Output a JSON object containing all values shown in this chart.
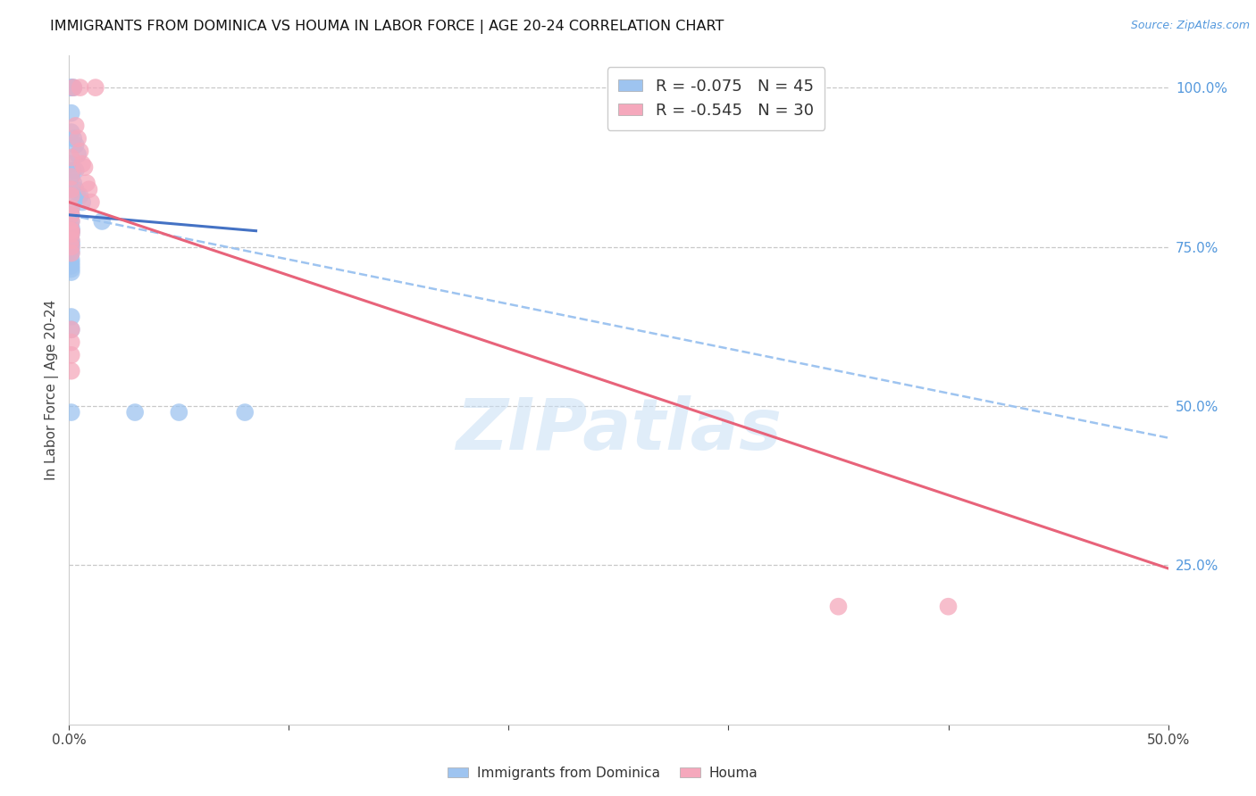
{
  "title": "IMMIGRANTS FROM DOMINICA VS HOUMA IN LABOR FORCE | AGE 20-24 CORRELATION CHART",
  "source": "Source: ZipAtlas.com",
  "ylabel": "In Labor Force | Age 20-24",
  "xlim": [
    0.0,
    0.5
  ],
  "ylim": [
    0.0,
    1.05
  ],
  "xticks": [
    0.0,
    0.1,
    0.2,
    0.3,
    0.4,
    0.5
  ],
  "xtick_labels": [
    "0.0%",
    "",
    "",
    "",
    "",
    "50.0%"
  ],
  "yticks_right": [
    0.25,
    0.5,
    0.75,
    1.0
  ],
  "ytick_labels_right": [
    "25.0%",
    "50.0%",
    "75.0%",
    "100.0%"
  ],
  "legend_blue_r": "-0.075",
  "legend_blue_n": "45",
  "legend_pink_r": "-0.545",
  "legend_pink_n": "30",
  "watermark": "ZIPatlas",
  "blue_color": "#9ec4f0",
  "pink_color": "#f5a8bc",
  "blue_line_color": "#4472c4",
  "pink_line_color": "#e8637a",
  "blue_scatter": [
    [
      0.001,
      1.0
    ],
    [
      0.001,
      1.0
    ],
    [
      0.002,
      1.0
    ],
    [
      0.001,
      0.96
    ],
    [
      0.001,
      0.93
    ],
    [
      0.002,
      0.92
    ],
    [
      0.003,
      0.91
    ],
    [
      0.004,
      0.895
    ],
    [
      0.001,
      0.88
    ],
    [
      0.002,
      0.87
    ],
    [
      0.003,
      0.87
    ],
    [
      0.001,
      0.86
    ],
    [
      0.002,
      0.85
    ],
    [
      0.001,
      0.84
    ],
    [
      0.003,
      0.84
    ],
    [
      0.004,
      0.83
    ],
    [
      0.005,
      0.83
    ],
    [
      0.006,
      0.82
    ],
    [
      0.001,
      0.81
    ],
    [
      0.001,
      0.8
    ],
    [
      0.001,
      0.79
    ],
    [
      0.001,
      0.78
    ],
    [
      0.001,
      0.775
    ],
    [
      0.001,
      0.775
    ],
    [
      0.001,
      0.775
    ],
    [
      0.001,
      0.775
    ],
    [
      0.001,
      0.77
    ],
    [
      0.001,
      0.76
    ],
    [
      0.001,
      0.755
    ],
    [
      0.001,
      0.755
    ],
    [
      0.001,
      0.75
    ],
    [
      0.001,
      0.745
    ],
    [
      0.001,
      0.74
    ],
    [
      0.001,
      0.73
    ],
    [
      0.001,
      0.725
    ],
    [
      0.001,
      0.72
    ],
    [
      0.001,
      0.715
    ],
    [
      0.001,
      0.71
    ],
    [
      0.015,
      0.79
    ],
    [
      0.001,
      0.64
    ],
    [
      0.001,
      0.62
    ],
    [
      0.001,
      0.49
    ],
    [
      0.03,
      0.49
    ],
    [
      0.05,
      0.49
    ],
    [
      0.08,
      0.49
    ]
  ],
  "pink_scatter": [
    [
      0.002,
      1.0
    ],
    [
      0.005,
      1.0
    ],
    [
      0.012,
      1.0
    ],
    [
      0.003,
      0.94
    ],
    [
      0.004,
      0.92
    ],
    [
      0.005,
      0.9
    ],
    [
      0.001,
      0.89
    ],
    [
      0.006,
      0.88
    ],
    [
      0.007,
      0.875
    ],
    [
      0.001,
      0.86
    ],
    [
      0.008,
      0.85
    ],
    [
      0.001,
      0.84
    ],
    [
      0.009,
      0.84
    ],
    [
      0.001,
      0.83
    ],
    [
      0.01,
      0.82
    ],
    [
      0.001,
      0.81
    ],
    [
      0.001,
      0.8
    ],
    [
      0.001,
      0.79
    ],
    [
      0.001,
      0.775
    ],
    [
      0.001,
      0.775
    ],
    [
      0.001,
      0.77
    ],
    [
      0.001,
      0.76
    ],
    [
      0.001,
      0.75
    ],
    [
      0.001,
      0.74
    ],
    [
      0.001,
      0.62
    ],
    [
      0.001,
      0.6
    ],
    [
      0.001,
      0.58
    ],
    [
      0.001,
      0.555
    ],
    [
      0.35,
      0.185
    ],
    [
      0.4,
      0.185
    ]
  ],
  "blue_trendline_solid": [
    [
      0.0,
      0.8
    ],
    [
      0.085,
      0.775
    ]
  ],
  "blue_trendline_dashed": [
    [
      0.0,
      0.8
    ],
    [
      0.5,
      0.45
    ]
  ],
  "pink_trendline": [
    [
      0.0,
      0.82
    ],
    [
      0.5,
      0.245
    ]
  ],
  "background_color": "#ffffff",
  "grid_color": "#c8c8c8"
}
